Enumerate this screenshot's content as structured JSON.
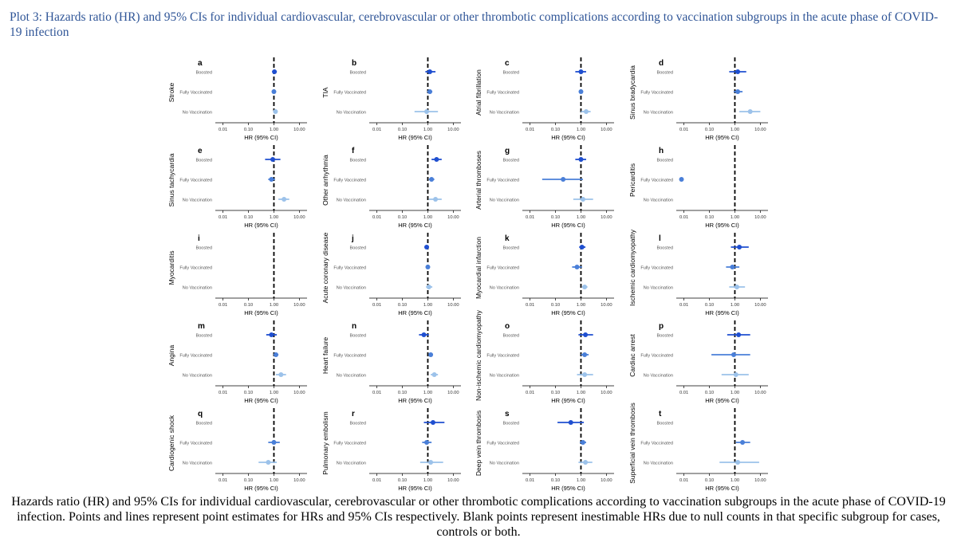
{
  "title": "Plot 3: Hazards ratio (HR) and 95% CIs for individual cardiovascular, cerebrovascular or other thrombotic complications according to vaccination subgroups in the acute phase of COVID-19 infection",
  "caption": "Hazards ratio (HR) and 95% CIs for individual cardiovascular, cerebrovascular or other thrombotic complications according to vaccination subgroups in the acute phase of COVID-19 infection. Points and lines represent point estimates for HRs and 95% CIs respectively. Blank points represent inestimable HRs due to null counts in that specific subgroup for cases, controls or both.",
  "colors": {
    "Boosted": "#1f4fd0",
    "Fully Vaccinated": "#4a7fd8",
    "No Vaccination": "#9cc2ea",
    "reference_line": "#000000",
    "title": "#2f5597"
  },
  "chart_data": {
    "type": "forest",
    "xscale": "log10",
    "xlim": [
      0.005,
      20
    ],
    "xticks": [
      0.01,
      0.1,
      1,
      10
    ],
    "xtick_labels": [
      "0.01",
      "0.10",
      "1.00",
      "10.00"
    ],
    "xlabel": "HR (95% CI)",
    "reference_x": 1,
    "groups": [
      "Boosted",
      "Fully Vaccinated",
      "No Vaccination"
    ],
    "panels": [
      {
        "letter": "a",
        "outcome": "Stroke",
        "estimates": [
          {
            "group": "Boosted",
            "hr": 1.05,
            "lo": 0.85,
            "hi": 1.3
          },
          {
            "group": "Fully Vaccinated",
            "hr": 1.0,
            "lo": 0.9,
            "hi": 1.1
          },
          {
            "group": "No Vaccination",
            "hr": 1.15,
            "lo": 0.95,
            "hi": 1.4
          }
        ]
      },
      {
        "letter": "b",
        "outcome": "TIA",
        "estimates": [
          {
            "group": "Boosted",
            "hr": 1.2,
            "lo": 0.8,
            "hi": 2.0
          },
          {
            "group": "Fully Vaccinated",
            "hr": 1.2,
            "lo": 0.95,
            "hi": 1.5
          },
          {
            "group": "No Vaccination",
            "hr": 0.9,
            "lo": 0.3,
            "hi": 2.5
          }
        ]
      },
      {
        "letter": "c",
        "outcome": "Atrial fibrillation",
        "estimates": [
          {
            "group": "Boosted",
            "hr": 1.0,
            "lo": 0.6,
            "hi": 1.6
          },
          {
            "group": "Fully Vaccinated",
            "hr": 1.0,
            "lo": 0.85,
            "hi": 1.2
          },
          {
            "group": "No Vaccination",
            "hr": 1.6,
            "lo": 1.0,
            "hi": 2.4
          }
        ]
      },
      {
        "letter": "d",
        "outcome": "Sinus bradycardia",
        "estimates": [
          {
            "group": "Boosted",
            "hr": 1.3,
            "lo": 0.6,
            "hi": 2.8
          },
          {
            "group": "Fully Vaccinated",
            "hr": 1.3,
            "lo": 0.9,
            "hi": 2.0
          },
          {
            "group": "No Vaccination",
            "hr": 4.0,
            "lo": 1.5,
            "hi": 10.0
          }
        ]
      },
      {
        "letter": "e",
        "outcome": "Sinus tachycardia",
        "estimates": [
          {
            "group": "Boosted",
            "hr": 0.9,
            "lo": 0.45,
            "hi": 1.8
          },
          {
            "group": "Fully Vaccinated",
            "hr": 0.8,
            "lo": 0.6,
            "hi": 1.1
          },
          {
            "group": "No Vaccination",
            "hr": 2.5,
            "lo": 1.5,
            "hi": 4.0
          }
        ]
      },
      {
        "letter": "f",
        "outcome": "Other arrhythmia",
        "estimates": [
          {
            "group": "Boosted",
            "hr": 2.2,
            "lo": 1.4,
            "hi": 3.5
          },
          {
            "group": "Fully Vaccinated",
            "hr": 1.4,
            "lo": 1.1,
            "hi": 1.8
          },
          {
            "group": "No Vaccination",
            "hr": 2.0,
            "lo": 1.1,
            "hi": 3.5
          }
        ]
      },
      {
        "letter": "g",
        "outcome": "Arterial thromboses",
        "estimates": [
          {
            "group": "Boosted",
            "hr": 1.0,
            "lo": 0.6,
            "hi": 1.6
          },
          {
            "group": "Fully Vaccinated",
            "hr": 0.2,
            "lo": 0.03,
            "hi": 1.2
          },
          {
            "group": "No Vaccination",
            "hr": 1.2,
            "lo": 0.5,
            "hi": 3.0
          }
        ]
      },
      {
        "letter": "h",
        "outcome": "Pericarditis",
        "estimates": [
          {
            "group": "Boosted",
            "hr": null,
            "lo": null,
            "hi": null
          },
          {
            "group": "Fully Vaccinated",
            "hr": 0.008,
            "lo": null,
            "hi": null
          },
          {
            "group": "No Vaccination",
            "hr": null,
            "lo": null,
            "hi": null
          }
        ]
      },
      {
        "letter": "i",
        "outcome": "Myocarditis",
        "estimates": [
          {
            "group": "Boosted",
            "hr": null,
            "lo": null,
            "hi": null
          },
          {
            "group": "Fully Vaccinated",
            "hr": null,
            "lo": null,
            "hi": null
          },
          {
            "group": "No Vaccination",
            "hr": null,
            "lo": null,
            "hi": null
          }
        ]
      },
      {
        "letter": "j",
        "outcome": "Acute coronary disease",
        "estimates": [
          {
            "group": "Boosted",
            "hr": 0.9,
            "lo": 0.75,
            "hi": 1.1
          },
          {
            "group": "Fully Vaccinated",
            "hr": 1.0,
            "lo": 0.9,
            "hi": 1.1
          },
          {
            "group": "No Vaccination",
            "hr": 1.1,
            "lo": 0.85,
            "hi": 1.5
          }
        ]
      },
      {
        "letter": "k",
        "outcome": "Myocardial infarction",
        "estimates": [
          {
            "group": "Boosted",
            "hr": 1.1,
            "lo": 0.85,
            "hi": 1.5
          },
          {
            "group": "Fully Vaccinated",
            "hr": 0.7,
            "lo": 0.45,
            "hi": 1.1
          },
          {
            "group": "No Vaccination",
            "hr": 1.4,
            "lo": 1.1,
            "hi": 1.8
          }
        ]
      },
      {
        "letter": "l",
        "outcome": "Ischemic cardiomyopathy",
        "estimates": [
          {
            "group": "Boosted",
            "hr": 1.5,
            "lo": 0.7,
            "hi": 3.5
          },
          {
            "group": "Fully Vaccinated",
            "hr": 0.8,
            "lo": 0.45,
            "hi": 1.5
          },
          {
            "group": "No Vaccination",
            "hr": 1.2,
            "lo": 0.6,
            "hi": 2.5
          }
        ]
      },
      {
        "letter": "m",
        "outcome": "Angina",
        "estimates": [
          {
            "group": "Boosted",
            "hr": 0.8,
            "lo": 0.5,
            "hi": 1.3
          },
          {
            "group": "Fully Vaccinated",
            "hr": 1.2,
            "lo": 1.0,
            "hi": 1.5
          },
          {
            "group": "No Vaccination",
            "hr": 1.9,
            "lo": 1.2,
            "hi": 3.0
          }
        ]
      },
      {
        "letter": "n",
        "outcome": "Heart failure",
        "estimates": [
          {
            "group": "Boosted",
            "hr": 0.7,
            "lo": 0.45,
            "hi": 1.1
          },
          {
            "group": "Fully Vaccinated",
            "hr": 1.3,
            "lo": 1.15,
            "hi": 1.5
          },
          {
            "group": "No Vaccination",
            "hr": 1.8,
            "lo": 1.3,
            "hi": 2.5
          }
        ]
      },
      {
        "letter": "o",
        "outcome": "Non-ischemic cardiomyopathy",
        "estimates": [
          {
            "group": "Boosted",
            "hr": 1.5,
            "lo": 0.8,
            "hi": 3.0
          },
          {
            "group": "Fully Vaccinated",
            "hr": 1.4,
            "lo": 1.0,
            "hi": 2.0
          },
          {
            "group": "No Vaccination",
            "hr": 1.4,
            "lo": 0.7,
            "hi": 3.0
          }
        ]
      },
      {
        "letter": "p",
        "outcome": "Cardiac arrest",
        "estimates": [
          {
            "group": "Boosted",
            "hr": 1.4,
            "lo": 0.5,
            "hi": 4.0
          },
          {
            "group": "Fully Vaccinated",
            "hr": 0.9,
            "lo": 0.12,
            "hi": 4.0
          },
          {
            "group": "No Vaccination",
            "hr": 1.1,
            "lo": 0.3,
            "hi": 3.5
          }
        ]
      },
      {
        "letter": "q",
        "outcome": "Cardiogenic shock",
        "estimates": [
          {
            "group": "Boosted",
            "hr": null,
            "lo": null,
            "hi": null
          },
          {
            "group": "Fully Vaccinated",
            "hr": 1.0,
            "lo": 0.6,
            "hi": 1.7
          },
          {
            "group": "No Vaccination",
            "hr": 0.6,
            "lo": 0.25,
            "hi": 1.3
          }
        ]
      },
      {
        "letter": "r",
        "outcome": "Pulmonary embolism",
        "estimates": [
          {
            "group": "Boosted",
            "hr": 1.6,
            "lo": 0.7,
            "hi": 4.5
          },
          {
            "group": "Fully Vaccinated",
            "hr": 0.9,
            "lo": 0.6,
            "hi": 1.4
          },
          {
            "group": "No Vaccination",
            "hr": 1.3,
            "lo": 0.5,
            "hi": 4.0
          }
        ]
      },
      {
        "letter": "s",
        "outcome": "Deep vein thrombosis",
        "estimates": [
          {
            "group": "Boosted",
            "hr": 0.4,
            "lo": 0.12,
            "hi": 1.3
          },
          {
            "group": "Fully Vaccinated",
            "hr": 1.2,
            "lo": 0.9,
            "hi": 1.6
          },
          {
            "group": "No Vaccination",
            "hr": 1.5,
            "lo": 0.8,
            "hi": 2.8
          }
        ]
      },
      {
        "letter": "t",
        "outcome": "Superficial vein thrombosis",
        "estimates": [
          {
            "group": "Boosted",
            "hr": null,
            "lo": null,
            "hi": null
          },
          {
            "group": "Fully Vaccinated",
            "hr": 2.0,
            "lo": 1.1,
            "hi": 4.0
          },
          {
            "group": "No Vaccination",
            "hr": 1.3,
            "lo": 0.25,
            "hi": 9.0
          }
        ]
      }
    ]
  }
}
